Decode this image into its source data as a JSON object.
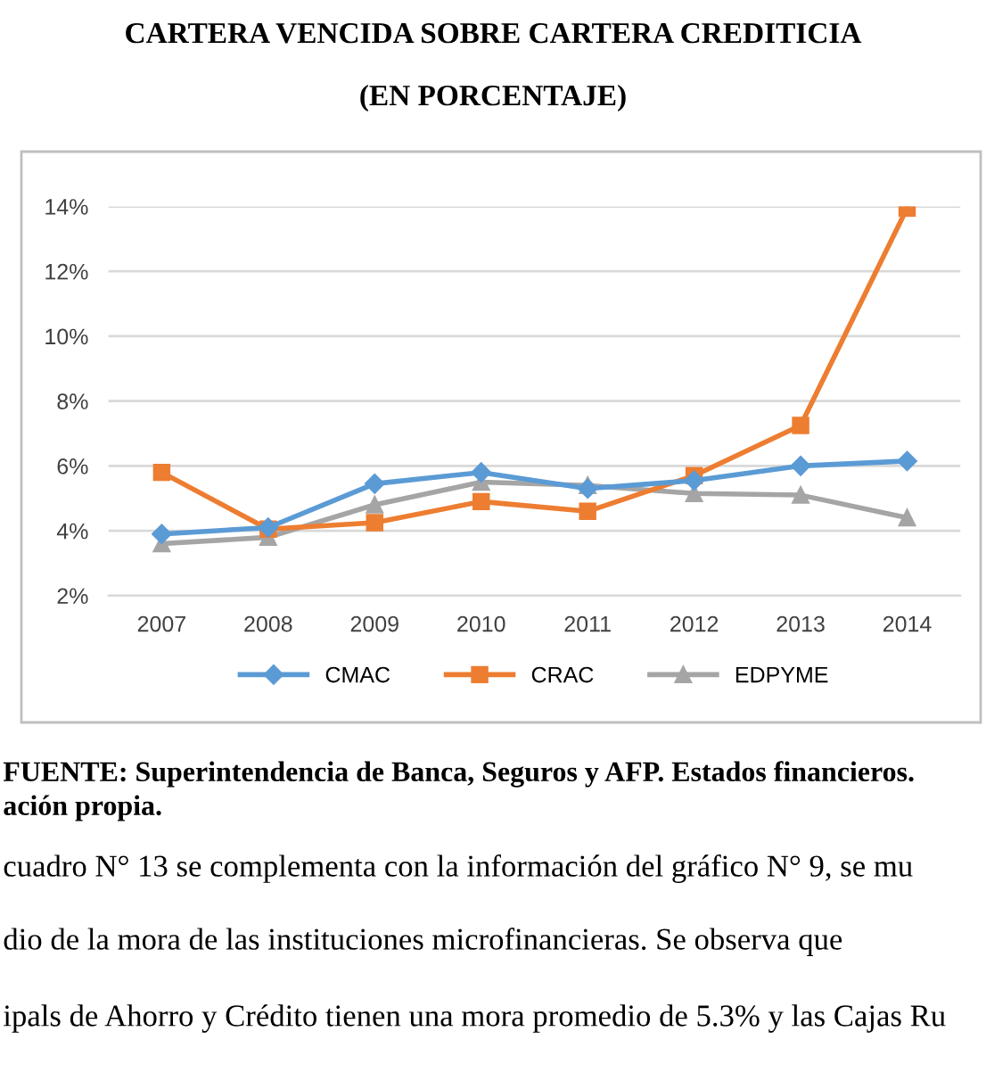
{
  "chart_data": {
    "type": "line",
    "title": "CARTERA VENCIDA SOBRE CARTERA CREDITICIA",
    "subtitle": "(EN PORCENTAJE)",
    "categories": [
      "2007",
      "2008",
      "2009",
      "2010",
      "2011",
      "2012",
      "2013",
      "2014"
    ],
    "series": [
      {
        "name": "CMAC",
        "color": "#5b9bd5",
        "marker": "diamond",
        "values": [
          3.9,
          4.1,
          5.45,
          5.8,
          5.3,
          5.55,
          6.0,
          6.15
        ]
      },
      {
        "name": "CRAC",
        "color": "#ed7d31",
        "marker": "square",
        "values": [
          5.8,
          4.05,
          4.25,
          4.9,
          4.6,
          5.7,
          7.25,
          13.95
        ]
      },
      {
        "name": "EDPYME",
        "color": "#a5a5a5",
        "marker": "triangle",
        "values": [
          3.6,
          3.8,
          4.8,
          5.5,
          5.4,
          5.15,
          5.1,
          4.4
        ]
      }
    ],
    "ylim": [
      2,
      14
    ],
    "yticks": [
      {
        "value": 2,
        "label": "2%"
      },
      {
        "value": 4,
        "label": "4%"
      },
      {
        "value": 6,
        "label": "6%"
      },
      {
        "value": 8,
        "label": "8%"
      },
      {
        "value": 10,
        "label": "10%"
      },
      {
        "value": 12,
        "label": "12%"
      },
      {
        "value": 14,
        "label": "14%"
      }
    ],
    "grid": "y",
    "legend": "bottom",
    "line_style": "solid",
    "annotations": [
      "FUENTE: Superintendencia de Banca, Seguros y AFP. Estados financieros.",
      "ación propia.",
      "cuadro N° 13 se complementa con la información del gráfico N° 9, se mu",
      "dio de la mora de las instituciones microfinancieras. Se observa que",
      "ipals de Ahorro y Crédito tienen una mora promedio de 5.3% y las Cajas Ru"
    ]
  }
}
